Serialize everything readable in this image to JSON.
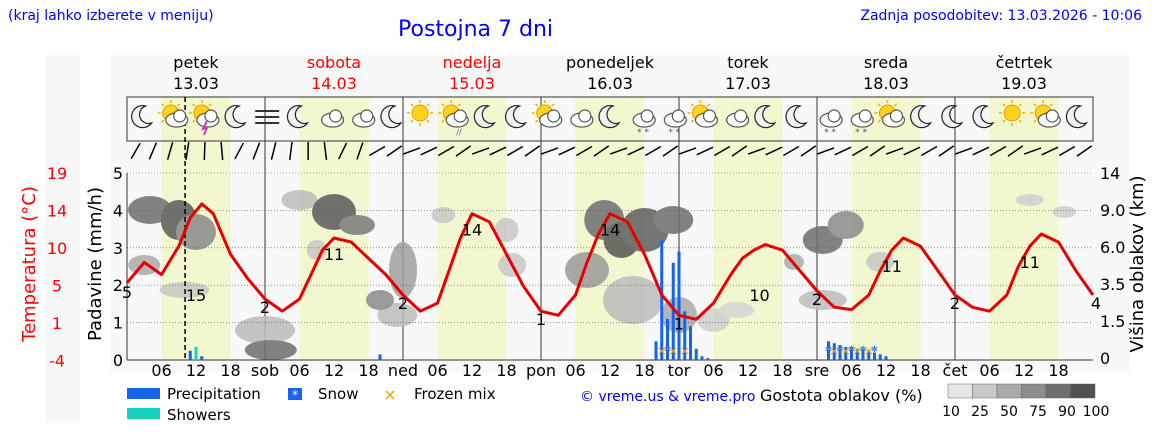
{
  "header": {
    "hint": "(kraj lahko izberete v meniju)",
    "title": "Postojna 7 dni",
    "updated": "Zadnja posodobitev: 13.03.2026 - 10:06"
  },
  "chart_data": {
    "type": "line",
    "days": [
      {
        "name": "petek",
        "date": "13.03",
        "weekend": false
      },
      {
        "name": "sobota",
        "date": "14.03",
        "weekend": true
      },
      {
        "name": "nedelja",
        "date": "15.03",
        "weekend": true
      },
      {
        "name": "ponedeljek",
        "date": "16.03",
        "weekend": false
      },
      {
        "name": "torek",
        "date": "17.03",
        "weekend": false
      },
      {
        "name": "sreda",
        "date": "18.03",
        "weekend": false
      },
      {
        "name": "četrtek",
        "date": "19.03",
        "weekend": false
      }
    ],
    "x_ticks": [
      "06",
      "12",
      "18",
      "sob",
      "06",
      "12",
      "18",
      "ned",
      "06",
      "12",
      "18",
      "pon",
      "06",
      "12",
      "18",
      "tor",
      "06",
      "12",
      "18",
      "sre",
      "06",
      "12",
      "18",
      "čet",
      "06",
      "12",
      "18"
    ],
    "axes": {
      "temperature": {
        "label": "Temperatura (°C)",
        "ticks": [
          "19",
          "14",
          "10",
          "5",
          "1",
          "-4"
        ]
      },
      "precipitation": {
        "label": "Padavine (mm/h)",
        "ticks": [
          "5",
          "4",
          "3",
          "2",
          "1",
          "0"
        ],
        "ylim": [
          0,
          5
        ]
      },
      "cloud_height": {
        "label": "Višina oblakov (km)",
        "ticks": [
          "14",
          "9.0",
          "6.0",
          "3.5",
          "1.5",
          "0"
        ]
      }
    },
    "temperature_series": {
      "name": "Temperatura",
      "hours": [
        0,
        3,
        6,
        9,
        11,
        13,
        15,
        18,
        21,
        24,
        27,
        30,
        32,
        34,
        36,
        39,
        42,
        45,
        48,
        51,
        54,
        56,
        58,
        60,
        63,
        66,
        69,
        72,
        75,
        78,
        80,
        82,
        84,
        87,
        90,
        93,
        96,
        99,
        102,
        105,
        107,
        109,
        111,
        114,
        117,
        120,
        123,
        126,
        129,
        131,
        133,
        135,
        138,
        141,
        144,
        147,
        150,
        153,
        155,
        157,
        159,
        162,
        165,
        168
      ],
      "values": [
        5.5,
        8.0,
        6.5,
        10.0,
        13.5,
        15.2,
        14.0,
        9.0,
        6.0,
        3.5,
        2.0,
        3.5,
        6.5,
        9.5,
        11.0,
        10.5,
        8.5,
        6.5,
        4.0,
        2.0,
        3.0,
        7.0,
        11.0,
        14.0,
        13.0,
        9.0,
        5.0,
        2.0,
        1.5,
        4.0,
        8.0,
        11.5,
        14.0,
        13.0,
        9.0,
        4.0,
        1.5,
        1.0,
        3.0,
        6.5,
        8.5,
        9.5,
        10.2,
        9.5,
        7.0,
        4.5,
        2.5,
        2.2,
        4.0,
        7.0,
        9.5,
        11.0,
        10.0,
        7.0,
        4.0,
        2.5,
        2.0,
        4.0,
        7.5,
        10.0,
        11.5,
        10.5,
        7.0,
        4.0
      ]
    },
    "temperature_labels": [
      {
        "hour": 12,
        "text": "15"
      },
      {
        "hour": 24,
        "text": "2"
      },
      {
        "hour": 36,
        "text": "11"
      },
      {
        "hour": 48,
        "text": "2"
      },
      {
        "hour": 60,
        "text": "14"
      },
      {
        "hour": 72,
        "text": "1"
      },
      {
        "hour": 84,
        "text": "14"
      },
      {
        "hour": 96,
        "text": "1"
      },
      {
        "hour": 110,
        "text": "10"
      },
      {
        "hour": 120,
        "text": "2"
      },
      {
        "hour": 133,
        "text": "11"
      },
      {
        "hour": 144,
        "text": "2"
      },
      {
        "hour": 157,
        "text": "11"
      },
      {
        "hour": 0,
        "text": "5"
      },
      {
        "hour": 168,
        "text": "4"
      }
    ],
    "precipitation_series": {
      "name": "Precipitation",
      "hours": [
        11,
        13,
        44,
        92,
        93,
        94,
        95,
        96,
        97,
        98,
        99,
        100,
        101,
        122,
        123,
        124,
        125,
        126,
        127,
        128,
        129,
        130,
        131,
        132
      ],
      "values": [
        0.25,
        0.1,
        0.15,
        0.5,
        3.2,
        1.1,
        2.6,
        2.9,
        1.3,
        0.9,
        0.3,
        0.1,
        0.05,
        0.5,
        0.45,
        0.4,
        0.35,
        0.35,
        0.3,
        0.3,
        0.25,
        0.2,
        0.15,
        0.1
      ]
    },
    "showers_series": {
      "name": "Showers",
      "hours": [
        12
      ],
      "values": [
        0.35
      ]
    },
    "snow_markers": {
      "name": "Snow",
      "hours": [
        94,
        122,
        124,
        126,
        128,
        130
      ]
    },
    "frozen_mix_markers": {
      "name": "Frozen mix",
      "hours": [
        93,
        95,
        97,
        123,
        125,
        127,
        129
      ]
    },
    "weather_icons": [
      "moon",
      "sun-cloud",
      "sun-storm",
      "moon",
      "fog",
      "moon",
      "cloud",
      "cloud",
      "moon",
      "sun",
      "sun-rain",
      "moon",
      "moon",
      "sun-cloud",
      "cloud",
      "moon",
      "cloud-snow",
      "cloud-snow",
      "sun-cloud",
      "cloud",
      "moon",
      "moon",
      "cloud-snow",
      "cloud-snow",
      "sun-cloud",
      "moon",
      "moon",
      "moon",
      "sun",
      "sun-cloud",
      "moon"
    ],
    "cloud_legend": {
      "title": "Gostota oblakov (%)",
      "ticks": [
        "10",
        "25",
        "50",
        "75",
        "90",
        "100"
      ]
    },
    "legend": {
      "precipitation": "Precipitation",
      "snow": "Snow",
      "frozen_mix": "Frozen mix",
      "showers": "Showers"
    },
    "colors": {
      "precipitation": "#1464f0",
      "showers": "#14d2be",
      "temperature": "#e60000",
      "frozen": "#f5a000",
      "daylight": "#f2f7cf"
    },
    "copyright": "© vreme.us & vreme.pro"
  }
}
